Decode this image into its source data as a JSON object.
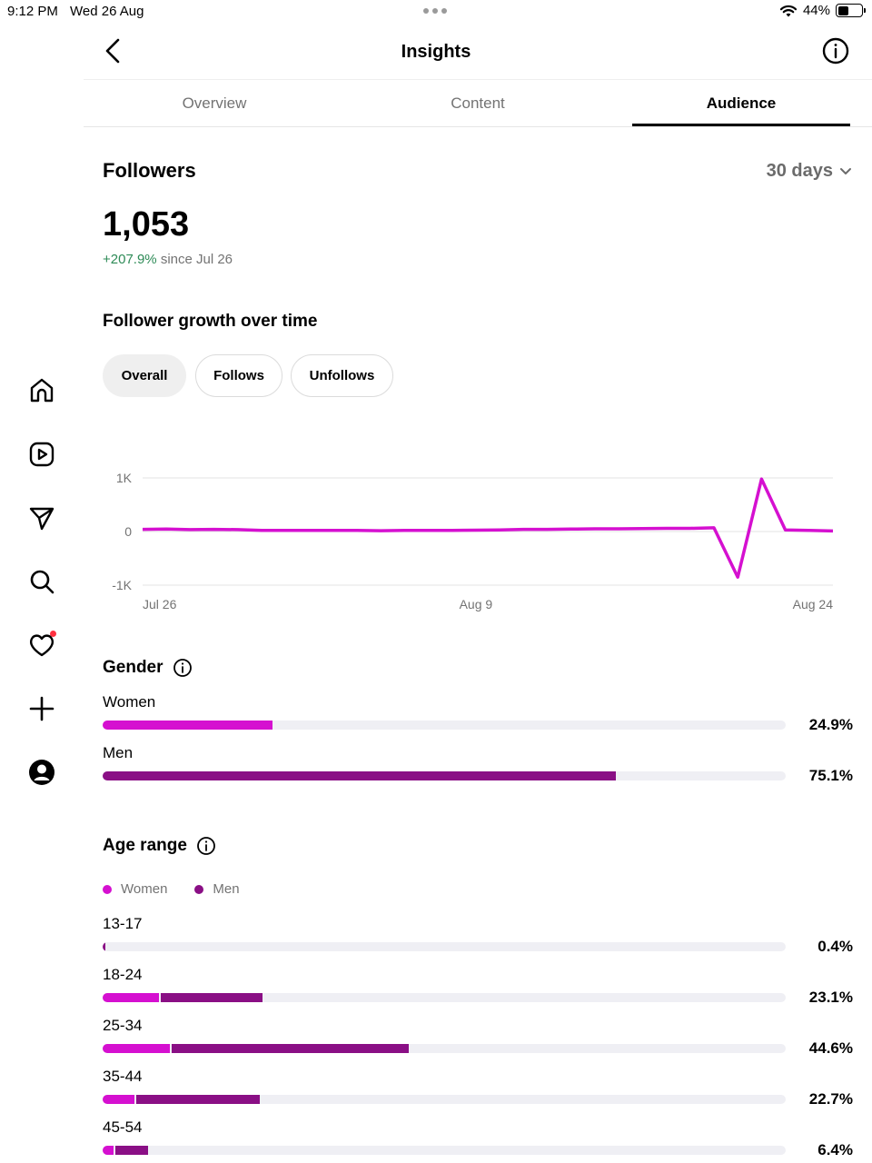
{
  "status_bar": {
    "time": "9:12 PM",
    "date": "Wed 26 Aug",
    "battery": "44%",
    "battery_level": 0.44
  },
  "header": {
    "title": "Insights"
  },
  "tabs": [
    {
      "label": "Overview",
      "active": false
    },
    {
      "label": "Content",
      "active": false
    },
    {
      "label": "Audience",
      "active": true
    }
  ],
  "sidebar": {
    "items": [
      "home-icon",
      "reels-icon",
      "send-icon",
      "search-icon",
      "heart-icon",
      "create-icon",
      "profile-icon"
    ]
  },
  "followers": {
    "title": "Followers",
    "range": "30 days",
    "count": "1,053",
    "delta": "+207.9%",
    "since": "since Jul 26"
  },
  "growth": {
    "title": "Follower growth over time",
    "chips": [
      "Overall",
      "Follows",
      "Unfollows"
    ],
    "selected_chip": "Overall"
  },
  "chart_data": {
    "type": "line",
    "x_tick_labels": [
      "Jul 26",
      "Aug 9",
      "Aug 24"
    ],
    "y_tick_labels": [
      "1K",
      "0",
      "-1K"
    ],
    "ylim": [
      -1000,
      1000
    ],
    "grid": true,
    "line_color": "#d510d0",
    "x": [
      "Jul 26",
      "Jul 27",
      "Jul 28",
      "Jul 29",
      "Jul 30",
      "Jul 31",
      "Aug 1",
      "Aug 2",
      "Aug 3",
      "Aug 4",
      "Aug 5",
      "Aug 6",
      "Aug 7",
      "Aug 8",
      "Aug 9",
      "Aug 10",
      "Aug 11",
      "Aug 12",
      "Aug 13",
      "Aug 14",
      "Aug 15",
      "Aug 16",
      "Aug 17",
      "Aug 18",
      "Aug 19",
      "Aug 20",
      "Aug 21",
      "Aug 22",
      "Aug 23",
      "Aug 24"
    ],
    "values": [
      40,
      45,
      35,
      40,
      35,
      20,
      20,
      20,
      20,
      20,
      15,
      20,
      20,
      20,
      25,
      30,
      40,
      40,
      45,
      50,
      50,
      55,
      60,
      60,
      70,
      -850,
      980,
      30,
      20,
      10
    ]
  },
  "gender": {
    "title": "Gender",
    "items": [
      {
        "label": "Women",
        "percent": "24.9%",
        "value": 24.9
      },
      {
        "label": "Men",
        "percent": "75.1%",
        "value": 75.1
      }
    ]
  },
  "age": {
    "title": "Age range",
    "legend": [
      "Women",
      "Men"
    ],
    "ranges": [
      {
        "label": "13-17",
        "percent": "0.4%",
        "women": 0.0,
        "men": 0.4
      },
      {
        "label": "18-24",
        "percent": "23.1%",
        "women": 8.2,
        "men": 14.9
      },
      {
        "label": "25-34",
        "percent": "44.6%",
        "women": 9.8,
        "men": 34.8
      },
      {
        "label": "35-44",
        "percent": "22.7%",
        "women": 4.6,
        "men": 18.1
      },
      {
        "label": "45-54",
        "percent": "6.4%",
        "women": 1.6,
        "men": 4.8
      }
    ]
  },
  "colors": {
    "women": "#d510d0",
    "men": "#8a0f85",
    "track": "#efeff4",
    "positive": "#2e8b57"
  }
}
